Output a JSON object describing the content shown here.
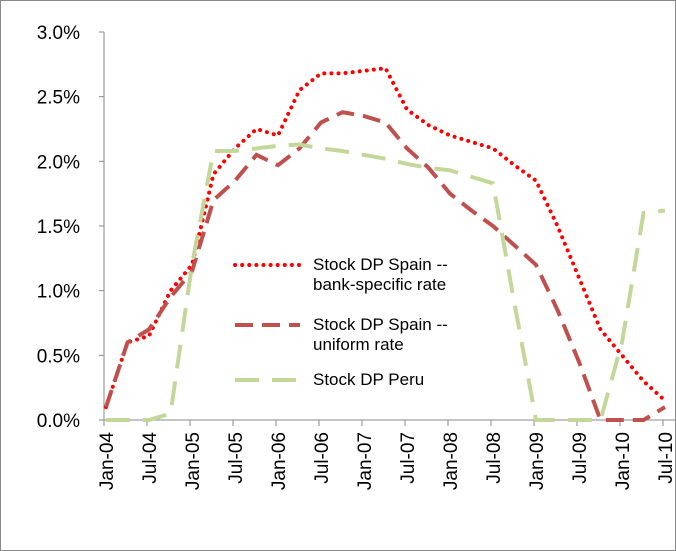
{
  "chart_data": {
    "type": "line",
    "categories": [
      "Jan-04",
      null,
      "Jul-04",
      null,
      "Jan-05",
      null,
      "Jul-05",
      null,
      "Jan-06",
      null,
      "Jul-06",
      null,
      "Jan-07",
      null,
      "Jul-07",
      null,
      "Jan-08",
      null,
      "Jul-08",
      null,
      "Jan-09",
      null,
      "Jul-09",
      null,
      "Jan-10",
      null,
      "Jul-10"
    ],
    "series": [
      {
        "name": "Stock DP Spain -- bank-specific rate",
        "color": "#ff0000",
        "values": [
          0.1,
          0.6,
          0.65,
          1.0,
          1.2,
          1.9,
          2.1,
          2.25,
          2.2,
          2.55,
          2.68,
          2.68,
          2.7,
          2.72,
          2.4,
          2.28,
          2.2,
          2.15,
          2.1,
          1.97,
          1.85,
          1.5,
          1.1,
          0.7,
          0.5,
          0.3,
          0.15
        ]
      },
      {
        "name": "Stock DP Spain -- uniform rate",
        "color": "#c0504d",
        "values": [
          0.1,
          0.6,
          0.7,
          0.95,
          1.15,
          1.7,
          1.85,
          2.05,
          1.97,
          2.1,
          2.3,
          2.38,
          2.35,
          2.3,
          2.1,
          1.95,
          1.75,
          1.62,
          1.5,
          1.35,
          1.2,
          0.85,
          0.45,
          0.0,
          0.0,
          0.0,
          0.1
        ]
      },
      {
        "name": "Stock DP Peru",
        "color": "#c4d79b",
        "values": [
          0,
          0,
          0,
          0.05,
          1.2,
          2.08,
          2.08,
          2.1,
          2.12,
          2.13,
          2.1,
          2.08,
          2.05,
          2.02,
          1.98,
          1.95,
          1.93,
          1.88,
          1.83,
          0.9,
          0.0,
          0,
          0,
          0,
          0.6,
          1.6,
          1.62
        ]
      }
    ],
    "ylim": [
      0,
      3
    ],
    "yticks": [
      {
        "value": 0,
        "label": "0.0%"
      },
      {
        "value": 0.5,
        "label": "0.5%"
      },
      {
        "value": 1,
        "label": "1.0%"
      },
      {
        "value": 1.5,
        "label": "1.5%"
      },
      {
        "value": 2,
        "label": "2.0%"
      },
      {
        "value": 2.5,
        "label": "2.5%"
      },
      {
        "value": 3,
        "label": "3.0%"
      }
    ]
  }
}
